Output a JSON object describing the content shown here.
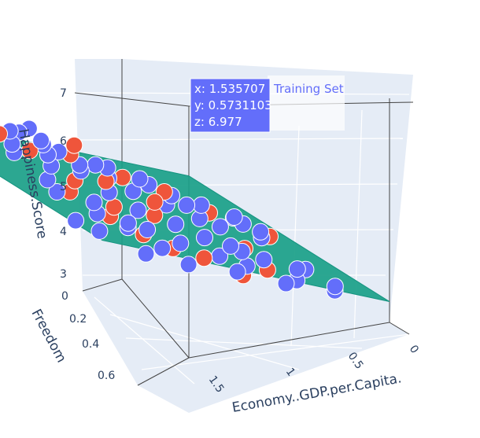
{
  "chart_data": {
    "type": "scatter3d",
    "axes": {
      "x": {
        "label": "Economy..GDP.per.Capita.",
        "ticks": [
          "0",
          "0.5",
          "1",
          "1.5"
        ],
        "range": [
          0,
          1.7
        ]
      },
      "y": {
        "label": "Freedom",
        "ticks": [
          "0",
          "0.2",
          "0.4",
          "0.6"
        ],
        "range": [
          0,
          0.67
        ]
      },
      "z": {
        "label": "Happiness.Score",
        "ticks": [
          "3",
          "4",
          "5",
          "6",
          "7"
        ],
        "range": [
          2.8,
          7.6
        ]
      }
    },
    "legend": {
      "entries": [
        "Training Set"
      ],
      "placement": "top-center"
    },
    "hover": {
      "x": "x: 1.535707",
      "y": "y: 0.5731103",
      "z": "z: 6.977"
    },
    "series": [
      {
        "name": "Training Set",
        "color": "#636efa",
        "points": [
          [
            1.53,
            0.57,
            6.98
          ],
          [
            1.45,
            0.62,
            7.4
          ],
          [
            1.38,
            0.58,
            7.2
          ],
          [
            1.48,
            0.55,
            7.1
          ],
          [
            1.33,
            0.6,
            7.0
          ],
          [
            1.25,
            0.52,
            6.8
          ],
          [
            1.4,
            0.5,
            6.9
          ],
          [
            1.3,
            0.45,
            6.6
          ],
          [
            1.2,
            0.55,
            6.5
          ],
          [
            1.15,
            0.48,
            6.3
          ],
          [
            1.35,
            0.4,
            6.5
          ],
          [
            1.1,
            0.42,
            6.1
          ],
          [
            1.05,
            0.5,
            6.0
          ],
          [
            1.22,
            0.35,
            6.2
          ],
          [
            0.98,
            0.45,
            5.9
          ],
          [
            1.0,
            0.38,
            5.8
          ],
          [
            0.95,
            0.3,
            5.7
          ],
          [
            1.1,
            0.28,
            5.9
          ],
          [
            0.9,
            0.35,
            5.5
          ],
          [
            0.85,
            0.42,
            5.4
          ],
          [
            1.12,
            0.2,
            5.6
          ],
          [
            1.05,
            0.15,
            5.4
          ],
          [
            0.92,
            0.22,
            5.3
          ],
          [
            0.8,
            0.3,
            5.2
          ],
          [
            0.88,
            0.12,
            5.1
          ],
          [
            0.75,
            0.38,
            5.0
          ],
          [
            0.7,
            0.25,
            4.9
          ],
          [
            0.78,
            0.18,
            4.8
          ],
          [
            0.65,
            0.32,
            4.7
          ],
          [
            0.95,
            0.08,
            5.0
          ],
          [
            0.72,
            0.1,
            4.6
          ],
          [
            0.6,
            0.4,
            4.5
          ],
          [
            0.55,
            0.28,
            4.4
          ],
          [
            0.62,
            0.2,
            4.3
          ],
          [
            0.5,
            0.35,
            4.2
          ],
          [
            0.45,
            0.22,
            4.1
          ],
          [
            0.52,
            0.15,
            4.0
          ],
          [
            0.4,
            0.42,
            4.0
          ],
          [
            0.35,
            0.3,
            3.9
          ],
          [
            0.42,
            0.08,
            3.8
          ],
          [
            0.3,
            0.25,
            3.7
          ],
          [
            0.25,
            0.4,
            3.6
          ],
          [
            0.35,
            0.12,
            3.5
          ],
          [
            0.2,
            0.3,
            3.5
          ],
          [
            0.28,
            0.05,
            3.4
          ],
          [
            0.15,
            0.2,
            3.3
          ],
          [
            0.4,
            0.5,
            4.4
          ],
          [
            0.58,
            0.45,
            4.6
          ],
          [
            0.66,
            0.5,
            4.8
          ],
          [
            0.82,
            0.55,
            5.3
          ],
          [
            1.0,
            0.6,
            6.2
          ],
          [
            1.18,
            0.62,
            6.6
          ],
          [
            1.28,
            0.65,
            7.0
          ],
          [
            1.42,
            0.45,
            7.0
          ],
          [
            1.5,
            0.4,
            6.8
          ],
          [
            1.02,
            0.02,
            4.9
          ],
          [
            0.9,
            0.55,
            5.6
          ],
          [
            0.76,
            0.48,
            5.1
          ],
          [
            0.46,
            0.55,
            4.3
          ],
          [
            0.32,
            0.48,
            3.8
          ],
          [
            0.05,
            0.35,
            4.6
          ],
          [
            0.6,
            0.05,
            3.9
          ],
          [
            0.1,
            0.1,
            3.2
          ],
          [
            0.48,
            0.6,
            4.5
          ],
          [
            1.3,
            0.3,
            6.2
          ],
          [
            1.6,
            0.5,
            7.2
          ]
        ]
      },
      {
        "name": "",
        "color": "#ef553b",
        "points": [
          [
            1.47,
            0.6,
            7.3
          ],
          [
            1.2,
            0.58,
            6.7
          ],
          [
            1.05,
            0.55,
            6.3
          ],
          [
            1.1,
            0.32,
            5.9
          ],
          [
            0.95,
            0.4,
            5.7
          ],
          [
            1.0,
            0.25,
            5.6
          ],
          [
            0.85,
            0.5,
            5.6
          ],
          [
            0.8,
            0.2,
            5.1
          ],
          [
            0.7,
            0.45,
            5.0
          ],
          [
            0.65,
            0.1,
            4.6
          ],
          [
            0.55,
            0.5,
            4.7
          ],
          [
            0.5,
            0.2,
            4.2
          ],
          [
            0.45,
            0.45,
            4.3
          ],
          [
            0.3,
            0.35,
            3.8
          ],
          [
            0.38,
            0.18,
            3.7
          ],
          [
            0.2,
            0.45,
            3.9
          ],
          [
            1.25,
            0.4,
            6.4
          ],
          [
            0.9,
            0.3,
            5.3
          ],
          [
            0.6,
            0.58,
            5.2
          ],
          [
            0.15,
            0.3,
            3.4
          ],
          [
            1.4,
            0.35,
            6.7
          ],
          [
            0.72,
            0.35,
            4.9
          ]
        ]
      }
    ],
    "surface": {
      "color": "#1aa088",
      "equation": {
        "intercept": 3.0,
        "x_coef": 2.0,
        "y_coef": 1.25
      }
    }
  }
}
